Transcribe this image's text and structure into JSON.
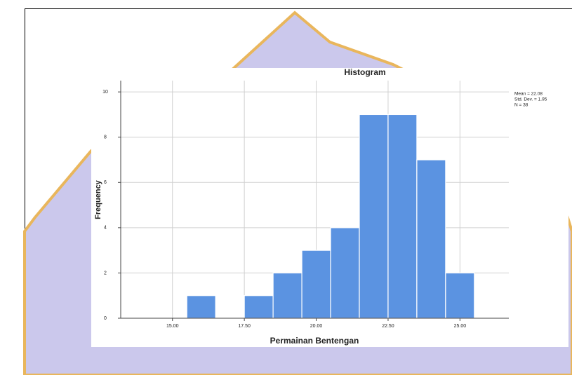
{
  "chart_data": {
    "type": "histogram",
    "title": "Histogram",
    "x_label": "Permainan Bentengan",
    "y_label": "Frequency",
    "bins": [
      15.5,
      16.5,
      17.5,
      18.5,
      19.5,
      20.5,
      21.5,
      22.5,
      23.5,
      24.5,
      25.5
    ],
    "values": [
      1,
      0,
      1,
      2,
      3,
      4,
      9,
      9,
      7,
      2
    ],
    "color": "#5b93e1",
    "xlim": [
      13.2,
      26.7
    ],
    "xticks": [
      {
        "value": 15,
        "label": "15.00"
      },
      {
        "value": 17.5,
        "label": "17.50"
      },
      {
        "value": 20,
        "label": "20.00"
      },
      {
        "value": 22.5,
        "label": "22.50"
      },
      {
        "value": 25,
        "label": "25.00"
      }
    ],
    "ylim": [
      0,
      10.5
    ],
    "yticks": [
      0,
      2,
      4,
      6,
      8,
      10
    ],
    "grid": true,
    "stats": [
      "Mean = 22.08",
      "Std. Dev. = 1.95",
      "N = 38"
    ]
  }
}
